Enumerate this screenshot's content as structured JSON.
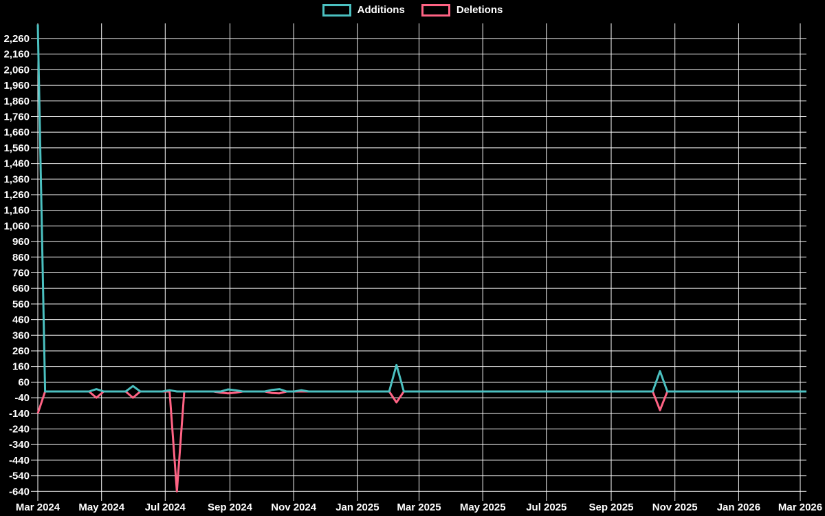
{
  "legend": {
    "items": [
      {
        "label": "Additions",
        "color": "#4bc0c0"
      },
      {
        "label": "Deletions",
        "color": "#ff6384"
      }
    ]
  },
  "colors": {
    "background": "#000000",
    "grid": "#ffffff",
    "text": "#ffffff",
    "additions": "#4bc0c0",
    "deletions": "#ff6384"
  },
  "chart_data": {
    "type": "line",
    "title": "",
    "legend_position": "top",
    "grid": true,
    "x_axis": {
      "label": "",
      "granularity": "weekly",
      "range_start": "Mar 2024",
      "range_end": "Mar 2026",
      "tick_labels": [
        "Mar 2024",
        "May 2024",
        "Jul 2024",
        "Sep 2024",
        "Nov 2024",
        "Jan 2025",
        "Mar 2025",
        "May 2025",
        "Jul 2025",
        "Sep 2025",
        "Nov 2025",
        "Jan 2026",
        "Mar 2026"
      ]
    },
    "y_axis": {
      "label": "",
      "min": -640,
      "max": 2360,
      "tick_step": 100,
      "tick_labels": [
        "2,260",
        "2,160",
        "2,060",
        "1,960",
        "1,860",
        "1,760",
        "1,660",
        "1,560",
        "1,460",
        "1,360",
        "1,260",
        "1,160",
        "1,060",
        "960",
        "860",
        "760",
        "660",
        "560",
        "460",
        "360",
        "260",
        "160",
        "60",
        "-40",
        "-140",
        "-240",
        "-340",
        "-440",
        "-540",
        "-640"
      ]
    },
    "num_weeks": 106,
    "series": [
      {
        "name": "Additions",
        "color": "#4bc0c0",
        "default_value": 0,
        "nonzero_points": {
          "0": 2350,
          "8": 15,
          "13": 35,
          "18": 8,
          "26": 13,
          "27": 8,
          "32": 10,
          "33": 15,
          "36": 8,
          "49": 170,
          "85": 130
        }
      },
      {
        "name": "Deletions",
        "color": "#ff6384",
        "default_value": 0,
        "nonzero_points": {
          "0": -140,
          "8": -40,
          "13": -40,
          "19": -640,
          "25": -8,
          "26": -12,
          "27": -8,
          "32": -10,
          "33": -12,
          "49": -70,
          "85": -120
        }
      }
    ]
  }
}
